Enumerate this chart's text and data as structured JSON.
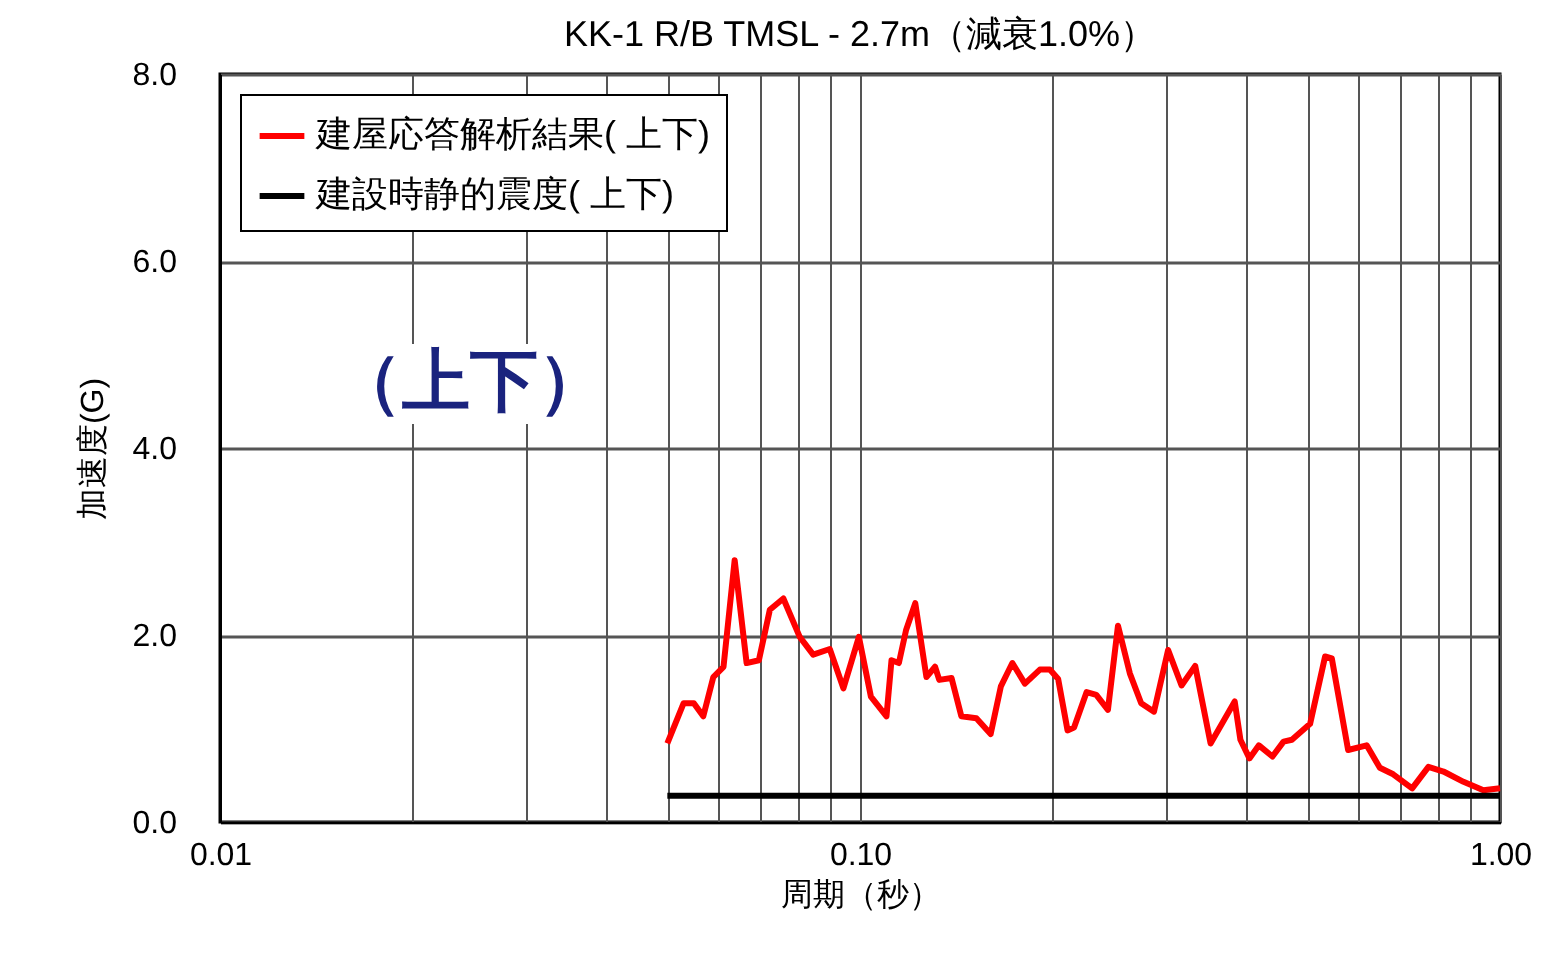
{
  "chart_data": {
    "type": "line",
    "title": "KK-1 R/B TMSL - 2.7m（減衰1.0%）",
    "xlabel": "周期（秒）",
    "ylabel": "加速度(G)",
    "annotations": [
      "（上下）"
    ],
    "log": "x",
    "grid": true,
    "legend": "top left",
    "marker": "none",
    "line_style": "solid",
    "xlim": [
      0.01,
      1.0
    ],
    "ylim": [
      0,
      8
    ],
    "xticks": [
      0.01,
      {
        "value": 0.02,
        "label": null
      },
      {
        "value": 0.03,
        "label": null
      },
      {
        "value": 0.04,
        "label": null
      },
      {
        "value": 0.05,
        "label": null
      },
      {
        "value": 0.06,
        "label": null
      },
      {
        "value": 0.07,
        "label": null
      },
      {
        "value": 0.08,
        "label": null
      },
      {
        "value": 0.09,
        "label": null
      },
      {
        "value": 0.1,
        "label": "0.10"
      },
      {
        "value": 0.2,
        "label": null
      },
      {
        "value": 0.3,
        "label": null
      },
      {
        "value": 0.4,
        "label": null
      },
      {
        "value": 0.5,
        "label": null
      },
      {
        "value": 0.6,
        "label": null
      },
      {
        "value": 0.7,
        "label": null
      },
      {
        "value": 0.8,
        "label": null
      },
      {
        "value": 0.9,
        "label": null
      },
      {
        "value": 1.0,
        "label": "1.00"
      }
    ],
    "yticks": [
      {
        "value": 0,
        "label": "0.0"
      },
      {
        "value": 2,
        "label": "2.0"
      },
      {
        "value": 4,
        "label": "4.0"
      },
      {
        "value": 6,
        "label": "6.0"
      },
      {
        "value": 8,
        "label": "8.0"
      }
    ],
    "series": [
      {
        "name": "建屋応答解析結果( 上下)",
        "color": "#ff0000",
        "x": [
          0.05,
          0.053,
          0.055,
          0.0569,
          0.059,
          0.0612,
          0.0637,
          0.0665,
          0.0695,
          0.0723,
          0.0759,
          0.0805,
          0.0845,
          0.0897,
          0.0942,
          0.0996,
          0.104,
          0.11,
          0.112,
          0.115,
          0.118,
          0.122,
          0.127,
          0.131,
          0.133,
          0.139,
          0.144,
          0.152,
          0.16,
          0.166,
          0.173,
          0.181,
          0.191,
          0.198,
          0.204,
          0.211,
          0.216,
          0.226,
          0.234,
          0.244,
          0.253,
          0.264,
          0.275,
          0.288,
          0.303,
          0.318,
          0.334,
          0.353,
          0.385,
          0.393,
          0.406,
          0.42,
          0.441,
          0.459,
          0.473,
          0.505,
          0.533,
          0.546,
          0.579,
          0.619,
          0.649,
          0.681,
          0.729,
          0.773,
          0.816,
          0.877,
          0.942,
          1.0
        ],
        "values": [
          0.84,
          1.27,
          1.27,
          1.13,
          1.55,
          1.66,
          2.8,
          1.7,
          1.73,
          2.27,
          2.39,
          1.98,
          1.79,
          1.85,
          1.43,
          1.98,
          1.34,
          1.13,
          1.73,
          1.7,
          2.05,
          2.34,
          1.55,
          1.66,
          1.52,
          1.54,
          1.13,
          1.11,
          0.94,
          1.45,
          1.7,
          1.48,
          1.63,
          1.63,
          1.53,
          0.98,
          1.01,
          1.39,
          1.36,
          1.2,
          2.1,
          1.59,
          1.27,
          1.18,
          1.84,
          1.46,
          1.67,
          0.84,
          1.29,
          0.88,
          0.68,
          0.82,
          0.7,
          0.86,
          0.88,
          1.05,
          1.77,
          1.75,
          0.77,
          0.82,
          0.58,
          0.51,
          0.36,
          0.59,
          0.54,
          0.43,
          0.34,
          0.36
        ]
      },
      {
        "name": "建設時静的震度( 上下)",
        "color": "#000000",
        "x": [
          0.05,
          1.0
        ],
        "values": [
          0.28,
          0.28
        ]
      }
    ]
  }
}
